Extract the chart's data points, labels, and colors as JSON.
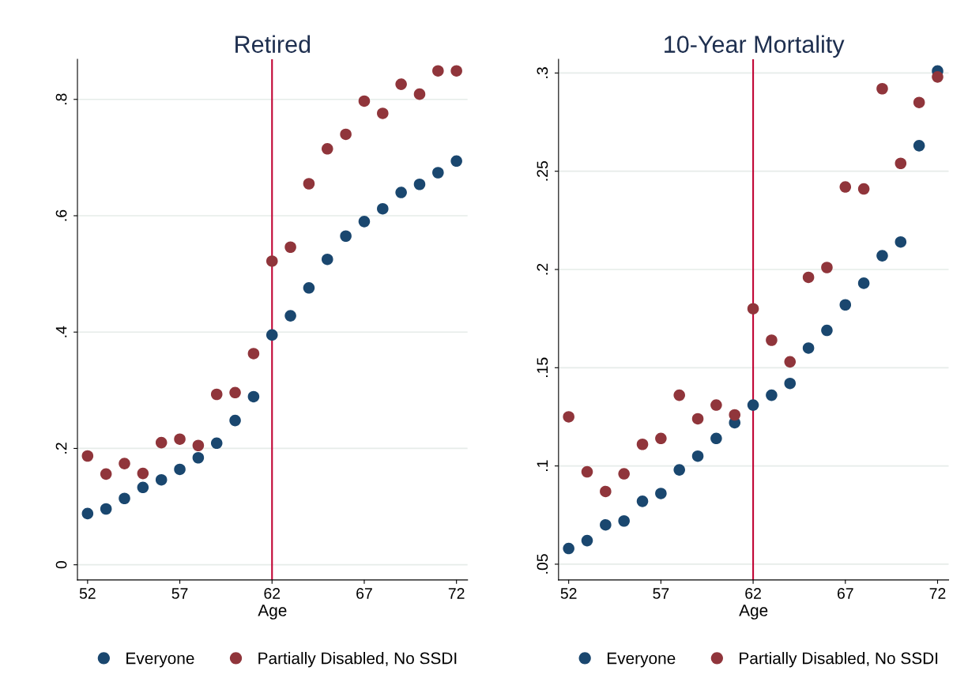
{
  "chart_data": [
    {
      "type": "scatter",
      "title": "Retired",
      "xlabel": "Age",
      "x": [
        52,
        53,
        54,
        55,
        56,
        57,
        58,
        59,
        60,
        61,
        62,
        63,
        64,
        65,
        66,
        67,
        68,
        69,
        70,
        71,
        72
      ],
      "series": [
        {
          "name": "Everyone",
          "color": "#1a476f",
          "values": [
            0.088,
            0.096,
            0.114,
            0.133,
            0.146,
            0.164,
            0.184,
            0.209,
            0.248,
            0.289,
            0.395,
            0.428,
            0.476,
            0.525,
            0.565,
            0.59,
            0.612,
            0.64,
            0.654,
            0.674,
            0.694
          ]
        },
        {
          "name": "Partially Disabled, No SSDI",
          "color": "#90353b",
          "values": [
            0.187,
            0.156,
            0.174,
            0.157,
            0.21,
            0.216,
            0.205,
            0.293,
            0.296,
            0.363,
            0.522,
            0.546,
            0.655,
            0.715,
            0.74,
            0.797,
            0.776,
            0.826,
            0.809,
            0.849,
            0.849
          ]
        }
      ],
      "xlim": [
        51.45,
        72.6
      ],
      "xticks": [
        52,
        57,
        62,
        67,
        72
      ],
      "ylim": [
        -0.026,
        0.869
      ],
      "yticks": [
        {
          "value": 0,
          "label": "0"
        },
        {
          "value": 0.2,
          "label": ".2"
        },
        {
          "value": 0.4,
          "label": ".4"
        },
        {
          "value": 0.6,
          "label": ".6"
        },
        {
          "value": 0.8,
          "label": ".8"
        }
      ],
      "ref_lines": [
        {
          "axis": "x",
          "value": 62,
          "color": "#c10534"
        }
      ],
      "grid": "y",
      "legend": "bottom",
      "marker": "circle"
    },
    {
      "type": "scatter",
      "title": "10-Year Mortality",
      "xlabel": "Age",
      "x": [
        52,
        53,
        54,
        55,
        56,
        57,
        58,
        59,
        60,
        61,
        62,
        63,
        64,
        65,
        66,
        67,
        68,
        69,
        70,
        71,
        72
      ],
      "series": [
        {
          "name": "Everyone",
          "color": "#1a476f",
          "values": [
            0.058,
            0.062,
            0.07,
            0.072,
            0.082,
            0.086,
            0.098,
            0.105,
            0.114,
            0.122,
            0.131,
            0.136,
            0.142,
            0.16,
            0.169,
            0.182,
            0.193,
            0.207,
            0.214,
            0.263,
            0.301
          ]
        },
        {
          "name": "Partially Disabled, No SSDI",
          "color": "#90353b",
          "values": [
            0.125,
            0.097,
            0.087,
            0.096,
            0.111,
            0.114,
            0.136,
            0.124,
            0.131,
            0.126,
            0.18,
            0.164,
            0.153,
            0.196,
            0.201,
            0.242,
            0.241,
            0.292,
            0.254,
            0.285,
            0.298
          ]
        }
      ],
      "xlim": [
        51.45,
        72.6
      ],
      "xticks": [
        52,
        57,
        62,
        67,
        72
      ],
      "ylim": [
        0.042,
        0.307
      ],
      "yticks": [
        {
          "value": 0.05,
          "label": ".05"
        },
        {
          "value": 0.1,
          "label": ".1"
        },
        {
          "value": 0.15,
          "label": ".15"
        },
        {
          "value": 0.2,
          "label": ".2"
        },
        {
          "value": 0.25,
          "label": ".25"
        },
        {
          "value": 0.3,
          "label": ".3"
        }
      ],
      "ref_lines": [
        {
          "axis": "x",
          "value": 62,
          "color": "#c10534"
        }
      ],
      "grid": "y",
      "legend": "bottom",
      "marker": "circle"
    }
  ]
}
